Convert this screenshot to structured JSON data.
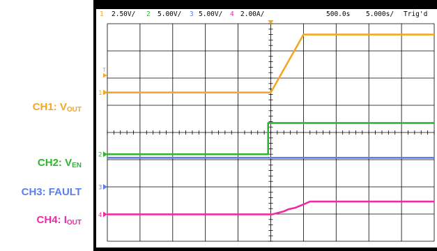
{
  "header": {
    "ch1_num": "1",
    "ch1_scale": "2.50V/",
    "ch2_num": "2",
    "ch2_scale": "5.00V/",
    "ch3_num": "3",
    "ch3_scale": "5.00V/",
    "ch4_num": "4",
    "ch4_scale": "2.00A/",
    "position": "500.0s",
    "timebase": "5.000s/",
    "trigger": "Trig'd"
  },
  "labels": {
    "ch1": {
      "main": "CH1: V",
      "sub": "OUT"
    },
    "ch2": {
      "main": "CH2: V",
      "sub": "EN"
    },
    "ch3": {
      "main": "CH3: FAULT",
      "sub": ""
    },
    "ch4": {
      "main": "CH4: I",
      "sub": "OUT"
    }
  },
  "colors": {
    "ch1": "#f5a623",
    "ch2": "#2fb52f",
    "ch3": "#5b7ff0",
    "ch4": "#ee2aa4",
    "background": "#ffffff",
    "grid": "#000000"
  },
  "chart_data": {
    "type": "line",
    "title": "",
    "grid": true,
    "x_divisions": 10,
    "y_divisions": 8,
    "x_unit": "div",
    "y_unit": "div",
    "xlim": [
      0,
      10
    ],
    "ylim": [
      0,
      8
    ],
    "series": [
      {
        "name": "CH1: VOUT",
        "color_key": "ch1",
        "x": [
          0,
          5.0,
          6.0,
          10.0
        ],
        "y": [
          5.47,
          5.47,
          7.6,
          7.6
        ]
      },
      {
        "name": "CH2: VEN",
        "color_key": "ch2",
        "x": [
          0,
          4.92,
          4.92,
          10.0
        ],
        "y": [
          3.2,
          3.2,
          4.35,
          4.35
        ]
      },
      {
        "name": "CH3: FAULT",
        "color_key": "ch3",
        "x": [
          0,
          10.0
        ],
        "y": [
          3.07,
          3.07
        ]
      },
      {
        "name": "CH4: IOUT",
        "color_key": "ch4",
        "x": [
          0,
          5.05,
          5.4,
          5.55,
          5.75,
          6.05,
          6.2,
          10.0
        ],
        "y": [
          0.99,
          0.99,
          1.1,
          1.18,
          1.23,
          1.38,
          1.46,
          1.46
        ]
      }
    ],
    "channel_markers": [
      {
        "name": "1",
        "color_key": "ch1",
        "level": 5.47
      },
      {
        "name": "2",
        "color_key": "ch2",
        "level": 3.2
      },
      {
        "name": "3",
        "color_key": "ch3",
        "level": 2.0
      },
      {
        "name": "4",
        "color_key": "ch4",
        "level": 0.99
      }
    ],
    "trigger_level_marker": {
      "color_key": "ch1",
      "level": 6.1,
      "label": "T"
    },
    "trigger_time_marker": {
      "color_key": "ch1",
      "x": 5.0
    }
  }
}
